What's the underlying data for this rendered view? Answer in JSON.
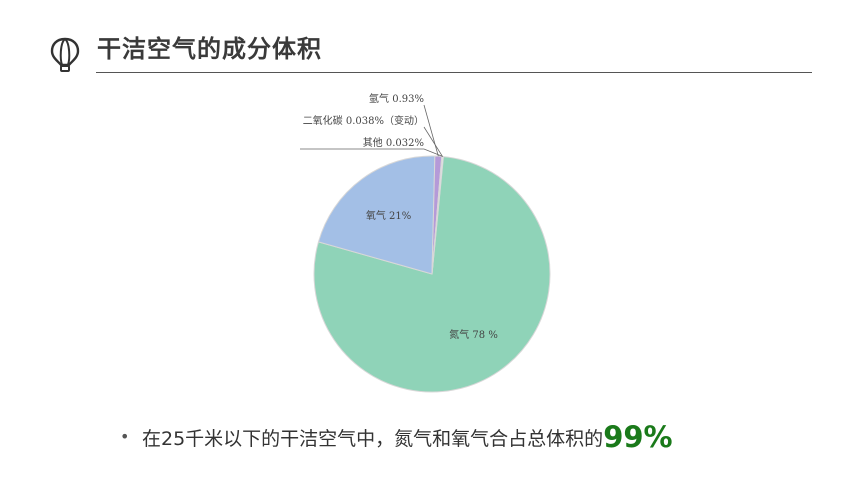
{
  "header": {
    "title": "干洁空气的成分体积",
    "icon": "hot-air-balloon-icon"
  },
  "chart_data": {
    "type": "pie",
    "title": "",
    "slices": [
      {
        "label": "氮气 78 %",
        "value": 78,
        "color": "#8fd3b8"
      },
      {
        "label": "氧气 21%",
        "value": 21,
        "color": "#a3bfe6"
      },
      {
        "label": "氩气 0.93%",
        "value": 0.93,
        "color": "#b59ad8"
      },
      {
        "label": "二氧化碳 0.038%（变动）",
        "value": 0.038,
        "color": "#e3dcec"
      },
      {
        "label": "其他 0.032%",
        "value": 0.032,
        "color": "#ece7f2"
      }
    ]
  },
  "bullet": {
    "text": "在25千米以下的干洁空气中，氮气和氧气合占总体积的",
    "highlight": "99%",
    "highlight_color": "#1a7a1a"
  }
}
